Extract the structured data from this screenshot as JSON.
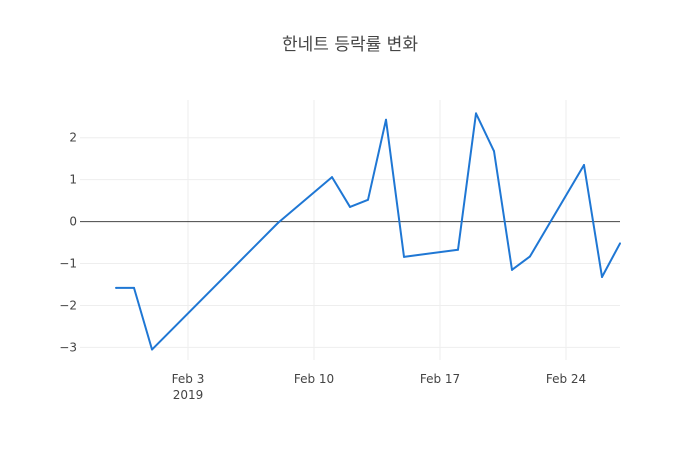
{
  "chart_data": {
    "type": "line",
    "title": "한네트 등락률 변화",
    "xlabel": "",
    "ylabel": "",
    "x": [
      "2019-01-30",
      "2019-01-31",
      "2019-02-01",
      "2019-02-08",
      "2019-02-11",
      "2019-02-12",
      "2019-02-13",
      "2019-02-14",
      "2019-02-15",
      "2019-02-18",
      "2019-02-19",
      "2019-02-20",
      "2019-02-21",
      "2019-02-22",
      "2019-02-25",
      "2019-02-26",
      "2019-02-27"
    ],
    "series": [
      {
        "values": [
          -1.58,
          -1.58,
          -3.05,
          -0.03,
          1.06,
          0.35,
          0.52,
          2.43,
          -0.84,
          -0.67,
          2.58,
          1.68,
          -1.15,
          -0.83,
          1.35,
          -1.32,
          -0.52
        ]
      }
    ],
    "xlim": [
      "2019-01-28",
      "2019-02-27"
    ],
    "ylim": [
      -3.3,
      2.9
    ],
    "x_ticks": [
      {
        "date": "2019-02-03",
        "label": "Feb 3",
        "sublabel": "2019"
      },
      {
        "date": "2019-02-10",
        "label": "Feb 10",
        "sublabel": ""
      },
      {
        "date": "2019-02-17",
        "label": "Feb 17",
        "sublabel": ""
      },
      {
        "date": "2019-02-24",
        "label": "Feb 24",
        "sublabel": ""
      }
    ],
    "y_ticks": [
      {
        "value": 2,
        "label": "2"
      },
      {
        "value": 1,
        "label": "1"
      },
      {
        "value": 0,
        "label": "0"
      },
      {
        "value": -1,
        "label": "−1"
      },
      {
        "value": -2,
        "label": "−2"
      },
      {
        "value": -3,
        "label": "−3"
      }
    ],
    "grid": true,
    "line_color": "#1f77d4",
    "zero_line_color": "#444444",
    "grid_color": "#eeeeee",
    "text_color": "#444444"
  }
}
